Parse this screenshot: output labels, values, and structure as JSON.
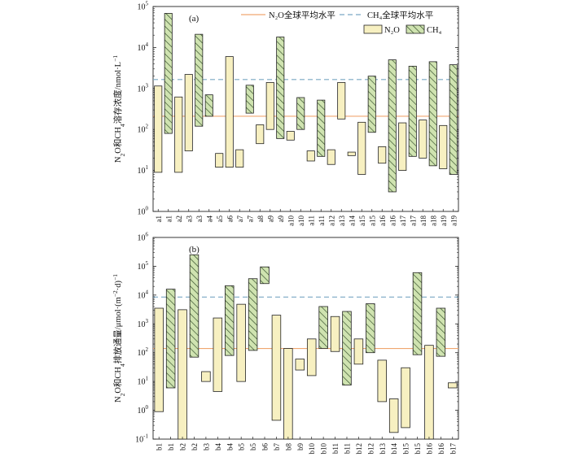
{
  "chart_data": [
    {
      "type": "bar",
      "subtype": "floating-range",
      "panel_label": "(a)",
      "title": "",
      "xlabel": "",
      "ylabel": "N₂O和CH₄溶存浓度/nmol·L⁻¹",
      "ylabel_parts": [
        {
          "t": "N"
        },
        {
          "t": "2",
          "sub": true
        },
        {
          "t": "O和CH"
        },
        {
          "t": "4",
          "sub": true
        },
        {
          "t": "溶存浓度/nmol·L"
        },
        {
          "t": "−1",
          "sup": true
        }
      ],
      "yscale": "log",
      "ylim": [
        1,
        100000
      ],
      "yticks": [
        1,
        10,
        100,
        1000,
        10000,
        100000
      ],
      "ytick_labels": [
        "10^0",
        "10^1",
        "10^2",
        "10^3",
        "10^4",
        "10^5"
      ],
      "reference_lines": [
        {
          "name": "N₂O全球平均水平",
          "value": 210,
          "color": "#f0a670",
          "style": "solid"
        },
        {
          "name": "CH₄全球平均水平",
          "value": 1650,
          "color": "#7aa8c4",
          "style": "dashed"
        }
      ],
      "legend": {
        "position": "top-right"
      },
      "series_styles": {
        "N2O": {
          "name": "N₂O",
          "fill": "#f7f0c1"
        },
        "CH4": {
          "name": "CH₄",
          "fill": "#cfe3b0",
          "hatch": true
        }
      },
      "bars": [
        {
          "label": "a1",
          "series": "N2O",
          "low": 9,
          "high": 1150
        },
        {
          "label": "a1",
          "series": "CH4",
          "low": 80,
          "high": 68000
        },
        {
          "label": "a2",
          "series": "N2O",
          "low": 9,
          "high": 620
        },
        {
          "label": "a3",
          "series": "N2O",
          "low": 30,
          "high": 2200
        },
        {
          "label": "a3",
          "series": "CH4",
          "low": 120,
          "high": 21000
        },
        {
          "label": "a4",
          "series": "CH4",
          "low": 210,
          "high": 700
        },
        {
          "label": "a5",
          "series": "N2O",
          "low": 12,
          "high": 26
        },
        {
          "label": "a6",
          "series": "N2O",
          "low": 12,
          "high": 6000
        },
        {
          "label": "a7",
          "series": "N2O",
          "low": 12,
          "high": 32
        },
        {
          "label": "a7",
          "series": "CH4",
          "low": 250,
          "high": 1200
        },
        {
          "label": "a8",
          "series": "N2O",
          "low": 45,
          "high": 130
        },
        {
          "label": "a9",
          "series": "N2O",
          "low": 100,
          "high": 1400
        },
        {
          "label": "a9",
          "series": "CH4",
          "low": 60,
          "high": 18000
        },
        {
          "label": "a10",
          "series": "N2O",
          "low": 55,
          "high": 90
        },
        {
          "label": "a10",
          "series": "CH4",
          "low": 100,
          "high": 600
        },
        {
          "label": "a11",
          "series": "N2O",
          "low": 17,
          "high": 30
        },
        {
          "label": "a11",
          "series": "CH4",
          "low": 22,
          "high": 520
        },
        {
          "label": "a12",
          "series": "N2O",
          "low": 14,
          "high": 32
        },
        {
          "label": "a13",
          "series": "N2O",
          "low": 180,
          "high": 1400
        },
        {
          "label": "a14",
          "series": "N2O",
          "low": 23,
          "high": 28
        },
        {
          "label": "a15",
          "series": "N2O",
          "low": 8,
          "high": 150
        },
        {
          "label": "a15",
          "series": "CH4",
          "low": 85,
          "high": 2000
        },
        {
          "label": "a16",
          "series": "N2O",
          "low": 15,
          "high": 38
        },
        {
          "label": "a16",
          "series": "CH4",
          "low": 3,
          "high": 5000
        },
        {
          "label": "a17",
          "series": "N2O",
          "low": 10,
          "high": 145
        },
        {
          "label": "a17",
          "series": "CH4",
          "low": 22,
          "high": 3500
        },
        {
          "label": "a18",
          "series": "N2O",
          "low": 20,
          "high": 170
        },
        {
          "label": "a18",
          "series": "CH4",
          "low": 13,
          "high": 4500
        },
        {
          "label": "a19",
          "series": "N2O",
          "low": 11,
          "high": 125
        },
        {
          "label": "a19",
          "series": "CH4",
          "low": 8,
          "high": 3800
        }
      ]
    },
    {
      "type": "bar",
      "subtype": "floating-range",
      "panel_label": "(b)",
      "title": "",
      "xlabel": "",
      "ylabel": "N₂O和CH₄排放通量/μmol·(m⁻²·d)⁻¹",
      "ylabel_parts": [
        {
          "t": "N"
        },
        {
          "t": "2",
          "sub": true
        },
        {
          "t": "O和CH"
        },
        {
          "t": "4",
          "sub": true
        },
        {
          "t": "排放通量/μmol·(m"
        },
        {
          "t": "−2",
          "sup": true
        },
        {
          "t": "·d)"
        },
        {
          "t": "−1",
          "sup": true
        }
      ],
      "yscale": "log",
      "ylim": [
        0.1,
        1000000
      ],
      "yticks": [
        0.1,
        1,
        10,
        100,
        1000,
        10000,
        100000,
        1000000
      ],
      "ytick_labels": [
        "10^-1",
        "10^0",
        "10^1",
        "10^2",
        "10^3",
        "10^4",
        "10^5",
        "10^6"
      ],
      "reference_lines": [
        {
          "name": "N₂O全球平均水平",
          "value": 140,
          "color": "#f0a670",
          "style": "solid"
        },
        {
          "name": "CH₄全球平均水平",
          "value": 8500,
          "color": "#7aa8c4",
          "style": "dashed"
        }
      ],
      "series_styles": {
        "N2O": {
          "name": "N₂O",
          "fill": "#f7f0c1"
        },
        "CH4": {
          "name": "CH₄",
          "fill": "#cfe3b0",
          "hatch": true
        }
      },
      "bars": [
        {
          "label": "b1",
          "series": "N2O",
          "low": 0.9,
          "high": 3500
        },
        {
          "label": "b1",
          "series": "CH4",
          "low": 6,
          "high": 16000
        },
        {
          "label": "b2",
          "series": "N2O",
          "low": 0.1,
          "high": 3100
        },
        {
          "label": "b2",
          "series": "CH4",
          "low": 70,
          "high": 250000
        },
        {
          "label": "b3",
          "series": "N2O",
          "low": 10,
          "high": 22
        },
        {
          "label": "b4",
          "series": "N2O",
          "low": 4.5,
          "high": 1600
        },
        {
          "label": "b4",
          "series": "CH4",
          "low": 80,
          "high": 21000
        },
        {
          "label": "b5",
          "series": "N2O",
          "low": 10,
          "high": 4800
        },
        {
          "label": "b5",
          "series": "CH4",
          "low": 120,
          "high": 37000
        },
        {
          "label": "b6",
          "series": "CH4",
          "low": 25000,
          "high": 95000
        },
        {
          "label": "b7",
          "series": "N2O",
          "low": 0.45,
          "high": 2000
        },
        {
          "label": "b8",
          "series": "N2O",
          "low": 0.1,
          "high": 140
        },
        {
          "label": "b9",
          "series": "N2O",
          "low": 25,
          "high": 60
        },
        {
          "label": "b10",
          "series": "N2O",
          "low": 16,
          "high": 300
        },
        {
          "label": "b10",
          "series": "CH4",
          "low": 140,
          "high": 4000
        },
        {
          "label": "b11",
          "series": "N2O",
          "low": 110,
          "high": 1800
        },
        {
          "label": "b11",
          "series": "CH4",
          "low": 7.5,
          "high": 2700
        },
        {
          "label": "b12",
          "series": "N2O",
          "low": 40,
          "high": 300
        },
        {
          "label": "b12",
          "series": "CH4",
          "low": 100,
          "high": 5000
        },
        {
          "label": "b13",
          "series": "N2O",
          "low": 2,
          "high": 55
        },
        {
          "label": "b14",
          "series": "N2O",
          "low": 0.17,
          "high": 2.5
        },
        {
          "label": "b15",
          "series": "N2O",
          "low": 0.25,
          "high": 30
        },
        {
          "label": "b15",
          "series": "CH4",
          "low": 85,
          "high": 60000
        },
        {
          "label": "b16",
          "series": "N2O",
          "low": 0.1,
          "high": 180
        },
        {
          "label": "b16",
          "series": "CH4",
          "low": 75,
          "high": 3500
        },
        {
          "label": "b17",
          "series": "N2O",
          "low": 6,
          "high": 9
        }
      ]
    }
  ]
}
